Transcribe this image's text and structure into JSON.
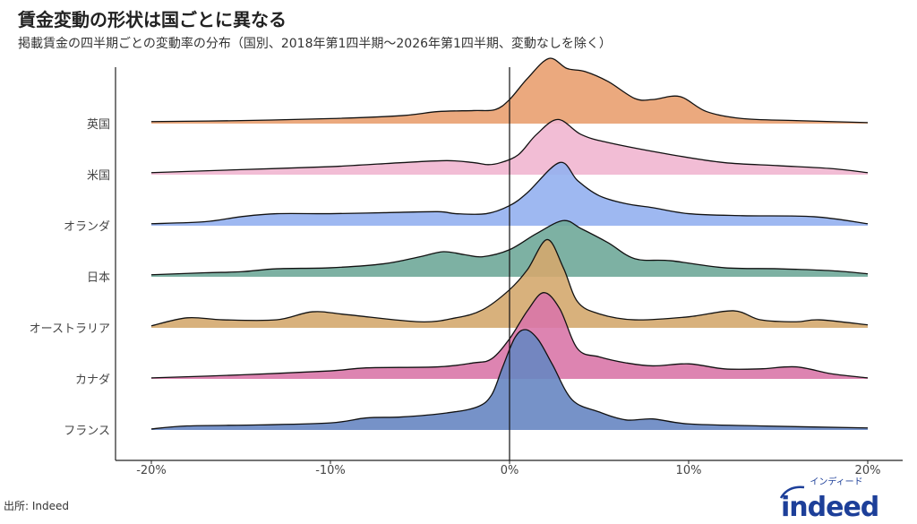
{
  "title": "賃金変動の形状は国ごとに異なる",
  "subtitle": "掲載賃金の四半期ごとの変動率の分布（国別、2018年第1四半期〜2026年第1四半期、変動なしを除く）",
  "source": "出所: Indeed",
  "logo": {
    "text": "indeed",
    "katakana": "インディード",
    "color": "#1d3f99"
  },
  "chart_data": {
    "type": "ridgeline",
    "title": "",
    "xlabel": "",
    "ylabel": "",
    "xlim": [
      -20,
      20
    ],
    "x_ticks": [
      -20,
      -10,
      0,
      10,
      20
    ],
    "x_tick_labels": [
      "-20%",
      "-10%",
      "0%",
      "10%",
      "20%"
    ],
    "reference_line_x": 0,
    "grid": false,
    "series": [
      {
        "name": "英国",
        "color": "#E9A070",
        "points": [
          [
            -20,
            0.02
          ],
          [
            -15,
            0.03
          ],
          [
            -10,
            0.05
          ],
          [
            -6,
            0.08
          ],
          [
            -4,
            0.12
          ],
          [
            -2,
            0.13
          ],
          [
            -0.8,
            0.14
          ],
          [
            0,
            0.24
          ],
          [
            1,
            0.45
          ],
          [
            2.2,
            0.65
          ],
          [
            3.2,
            0.55
          ],
          [
            4.2,
            0.52
          ],
          [
            5.5,
            0.42
          ],
          [
            7,
            0.25
          ],
          [
            8,
            0.24
          ],
          [
            9.5,
            0.27
          ],
          [
            11,
            0.12
          ],
          [
            13,
            0.05
          ],
          [
            16,
            0.03
          ],
          [
            20,
            0.01
          ]
        ]
      },
      {
        "name": "米国",
        "color": "#F1B6D0",
        "points": [
          [
            -20,
            0.02
          ],
          [
            -15,
            0.05
          ],
          [
            -10,
            0.08
          ],
          [
            -6,
            0.12
          ],
          [
            -3.5,
            0.14
          ],
          [
            -2,
            0.12
          ],
          [
            -1.2,
            0.1
          ],
          [
            -0.5,
            0.12
          ],
          [
            0.5,
            0.2
          ],
          [
            1.5,
            0.4
          ],
          [
            2.7,
            0.55
          ],
          [
            4,
            0.4
          ],
          [
            5.5,
            0.32
          ],
          [
            9,
            0.2
          ],
          [
            12,
            0.12
          ],
          [
            15,
            0.09
          ],
          [
            18,
            0.06
          ],
          [
            20,
            0.02
          ]
        ]
      },
      {
        "name": "オランダ",
        "color": "#93B0F0",
        "points": [
          [
            -20,
            0.02
          ],
          [
            -17,
            0.04
          ],
          [
            -15,
            0.09
          ],
          [
            -13,
            0.12
          ],
          [
            -10,
            0.12
          ],
          [
            -7,
            0.13
          ],
          [
            -4,
            0.14
          ],
          [
            -3,
            0.12
          ],
          [
            -1.3,
            0.12
          ],
          [
            0,
            0.2
          ],
          [
            1,
            0.33
          ],
          [
            2.8,
            0.63
          ],
          [
            3.8,
            0.45
          ],
          [
            5,
            0.3
          ],
          [
            6.5,
            0.22
          ],
          [
            8,
            0.18
          ],
          [
            10,
            0.12
          ],
          [
            13,
            0.1
          ],
          [
            17,
            0.09
          ],
          [
            20,
            0.02
          ]
        ]
      },
      {
        "name": "日本",
        "color": "#6FA899",
        "points": [
          [
            -20,
            0.02
          ],
          [
            -17,
            0.04
          ],
          [
            -15,
            0.05
          ],
          [
            -13,
            0.08
          ],
          [
            -10,
            0.09
          ],
          [
            -7,
            0.13
          ],
          [
            -5,
            0.2
          ],
          [
            -3.7,
            0.25
          ],
          [
            -2.5,
            0.22
          ],
          [
            -1.5,
            0.2
          ],
          [
            0,
            0.27
          ],
          [
            1.5,
            0.43
          ],
          [
            3,
            0.56
          ],
          [
            4,
            0.48
          ],
          [
            5.5,
            0.34
          ],
          [
            7,
            0.18
          ],
          [
            9,
            0.16
          ],
          [
            12,
            0.09
          ],
          [
            15,
            0.08
          ],
          [
            18,
            0.06
          ],
          [
            20,
            0.03
          ]
        ]
      },
      {
        "name": "オーストラリア",
        "color": "#D4A96E",
        "points": [
          [
            -20,
            0.02
          ],
          [
            -18,
            0.1
          ],
          [
            -16,
            0.08
          ],
          [
            -13,
            0.08
          ],
          [
            -11,
            0.16
          ],
          [
            -9,
            0.13
          ],
          [
            -5,
            0.06
          ],
          [
            -3,
            0.1
          ],
          [
            -1.5,
            0.18
          ],
          [
            0,
            0.38
          ],
          [
            1,
            0.58
          ],
          [
            2.1,
            0.88
          ],
          [
            3,
            0.6
          ],
          [
            3.8,
            0.26
          ],
          [
            5,
            0.14
          ],
          [
            7,
            0.08
          ],
          [
            10,
            0.11
          ],
          [
            12.5,
            0.17
          ],
          [
            14,
            0.08
          ],
          [
            16,
            0.06
          ],
          [
            17.3,
            0.08
          ],
          [
            20,
            0.03
          ]
        ]
      },
      {
        "name": "カナダ",
        "color": "#D977A8",
        "points": [
          [
            -20,
            0.01
          ],
          [
            -15,
            0.04
          ],
          [
            -10,
            0.08
          ],
          [
            -8,
            0.11
          ],
          [
            -4,
            0.12
          ],
          [
            -2,
            0.16
          ],
          [
            -1,
            0.2
          ],
          [
            0,
            0.4
          ],
          [
            1,
            0.68
          ],
          [
            1.9,
            0.86
          ],
          [
            2.8,
            0.7
          ],
          [
            3.8,
            0.3
          ],
          [
            5,
            0.22
          ],
          [
            6.5,
            0.16
          ],
          [
            8,
            0.13
          ],
          [
            10,
            0.15
          ],
          [
            12,
            0.1
          ],
          [
            14,
            0.1
          ],
          [
            16,
            0.12
          ],
          [
            18,
            0.05
          ],
          [
            20,
            0.01
          ]
        ]
      },
      {
        "name": "フランス",
        "color": "#6786C2",
        "points": [
          [
            -20,
            0.01
          ],
          [
            -18,
            0.04
          ],
          [
            -14,
            0.05
          ],
          [
            -10,
            0.07
          ],
          [
            -8,
            0.12
          ],
          [
            -6,
            0.13
          ],
          [
            -3.5,
            0.17
          ],
          [
            -1.8,
            0.23
          ],
          [
            -1,
            0.35
          ],
          [
            -0.4,
            0.62
          ],
          [
            0.3,
            0.92
          ],
          [
            0.9,
            1.0
          ],
          [
            1.6,
            0.9
          ],
          [
            2.4,
            0.65
          ],
          [
            3.5,
            0.3
          ],
          [
            5,
            0.18
          ],
          [
            6.5,
            0.1
          ],
          [
            8,
            0.11
          ],
          [
            10,
            0.06
          ],
          [
            14,
            0.04
          ],
          [
            20,
            0.02
          ]
        ]
      }
    ]
  }
}
